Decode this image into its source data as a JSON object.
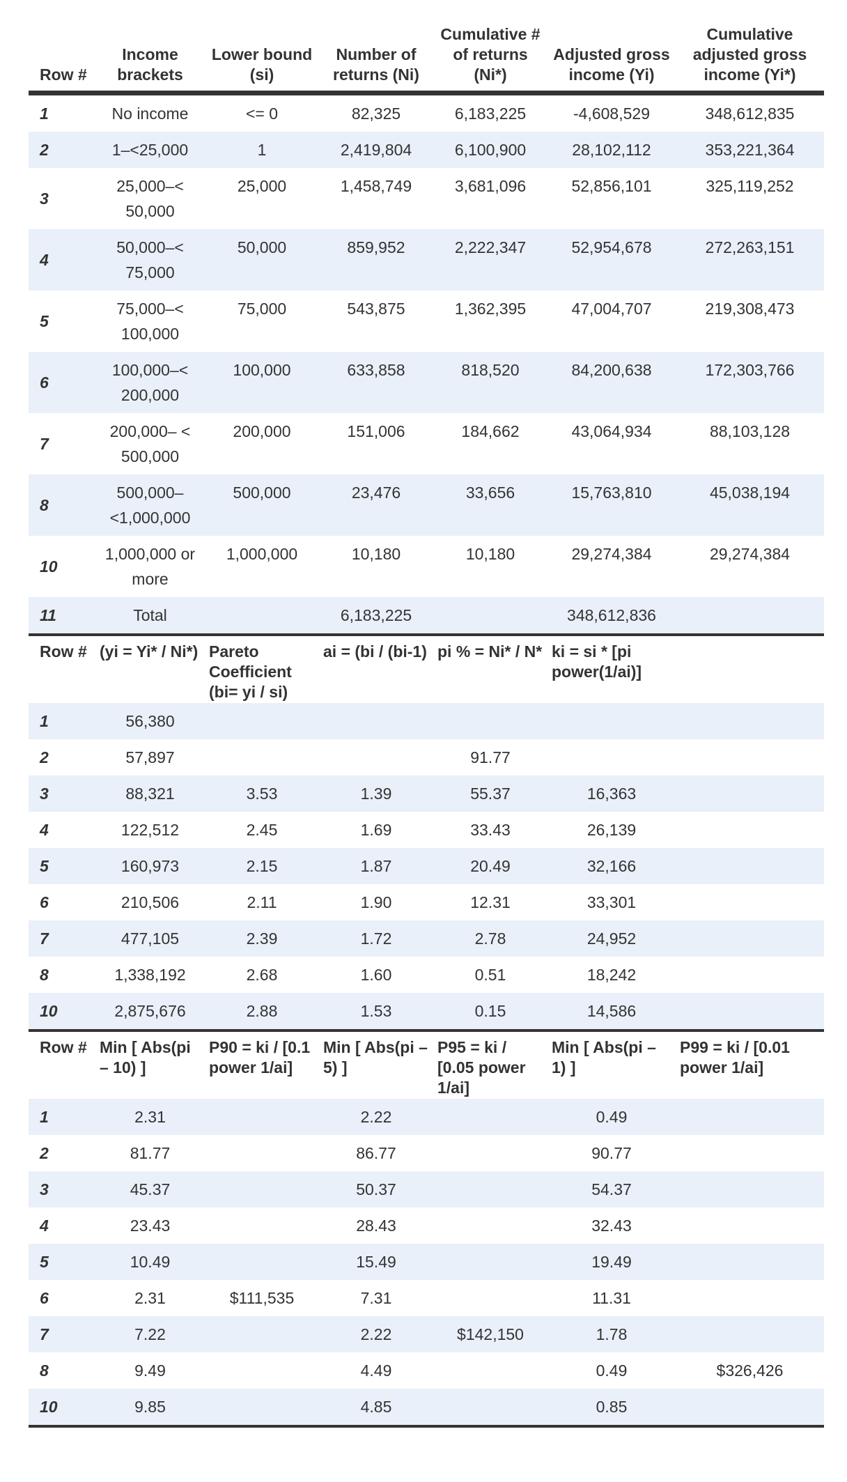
{
  "sections": [
    {
      "headers": [
        "Row #",
        "Income brackets",
        "Lower bound (si)",
        "Number of returns (Ni)",
        "Cumulative # of returns (Ni*)",
        "Adjusted gross income (Yi)",
        "Cumulative adjusted gross income (Yi*)"
      ],
      "rows": [
        [
          "1",
          "No income",
          "<= 0",
          "82,325",
          "6,183,225",
          "-4,608,529",
          "348,612,835"
        ],
        [
          "2",
          "1–<25,000",
          "1",
          "2,419,804",
          "6,100,900",
          "28,102,112",
          "353,221,364"
        ],
        [
          "3",
          "25,000–< 50,000",
          "25,000",
          "1,458,749",
          "3,681,096",
          "52,856,101",
          "325,119,252"
        ],
        [
          "4",
          "50,000–< 75,000",
          "50,000",
          "859,952",
          "2,222,347",
          "52,954,678",
          "272,263,151"
        ],
        [
          "5",
          "75,000–< 100,000",
          "75,000",
          "543,875",
          "1,362,395",
          "47,004,707",
          "219,308,473"
        ],
        [
          "6",
          "100,000–< 200,000",
          "100,000",
          "633,858",
          "818,520",
          "84,200,638",
          "172,303,766"
        ],
        [
          "7",
          "200,000– < 500,000",
          "200,000",
          "151,006",
          "184,662",
          "43,064,934",
          "88,103,128"
        ],
        [
          "8",
          "500,000– <1,000,000",
          "500,000",
          "23,476",
          "33,656",
          "15,763,810",
          "45,038,194"
        ],
        [
          "10",
          "1,000,000 or more",
          "1,000,000",
          "10,180",
          "10,180",
          "29,274,384",
          "29,274,384"
        ],
        [
          "11",
          "Total",
          "",
          "6,183,225",
          "",
          "348,612,836",
          ""
        ]
      ]
    },
    {
      "headers": [
        "Row #",
        "(yi = Yi* / Ni*)",
        "Pareto Coefficient (bi= yi / si)",
        "ai = (bi / (bi-1)",
        "pi % = Ni* / N*",
        "ki = si * [pi power(1/ai)]",
        ""
      ],
      "rows": [
        [
          "1",
          "56,380",
          "",
          "",
          "",
          "",
          ""
        ],
        [
          "2",
          "57,897",
          "",
          "",
          "91.77",
          "",
          ""
        ],
        [
          "3",
          "88,321",
          "3.53",
          "1.39",
          "55.37",
          "16,363",
          ""
        ],
        [
          "4",
          "122,512",
          "2.45",
          "1.69",
          "33.43",
          "26,139",
          ""
        ],
        [
          "5",
          "160,973",
          "2.15",
          "1.87",
          "20.49",
          "32,166",
          ""
        ],
        [
          "6",
          "210,506",
          "2.11",
          "1.90",
          "12.31",
          "33,301",
          ""
        ],
        [
          "7",
          "477,105",
          "2.39",
          "1.72",
          "2.78",
          "24,952",
          ""
        ],
        [
          "8",
          "1,338,192",
          "2.68",
          "1.60",
          "0.51",
          "18,242",
          ""
        ],
        [
          "10",
          "2,875,676",
          "2.88",
          "1.53",
          "0.15",
          "14,586",
          ""
        ]
      ]
    },
    {
      "headers": [
        "Row #",
        "Min [ Abs(pi – 10) ]",
        "P90 = ki / [0.1 power 1/ai]",
        "Min [ Abs(pi – 5) ]",
        "P95 = ki / [0.05 power 1/ai]",
        "Min [ Abs(pi – 1) ]",
        "P99 = ki / [0.01 power 1/ai]"
      ],
      "rows": [
        [
          "1",
          "2.31",
          "",
          "2.22",
          "",
          "0.49",
          ""
        ],
        [
          "2",
          "81.77",
          "",
          "86.77",
          "",
          "90.77",
          ""
        ],
        [
          "3",
          "45.37",
          "",
          "50.37",
          "",
          "54.37",
          ""
        ],
        [
          "4",
          "23.43",
          "",
          "28.43",
          "",
          "32.43",
          ""
        ],
        [
          "5",
          "10.49",
          "",
          "15.49",
          "",
          "19.49",
          ""
        ],
        [
          "6",
          "2.31",
          "$111,535",
          "7.31",
          "",
          "11.31",
          ""
        ],
        [
          "7",
          "7.22",
          "",
          "2.22",
          "$142,150",
          "1.78",
          ""
        ],
        [
          "8",
          "9.49",
          "",
          "4.49",
          "",
          "0.49",
          "$326,426"
        ],
        [
          "10",
          "9.85",
          "",
          "4.85",
          "",
          "0.85",
          ""
        ]
      ]
    }
  ]
}
